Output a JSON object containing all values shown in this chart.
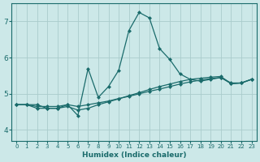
{
  "xlabel": "Humidex (Indice chaleur)",
  "background_color": "#cce8e8",
  "grid_color": "#aacccc",
  "line_color": "#1a6b6b",
  "xlim": [
    -0.5,
    23.5
  ],
  "ylim": [
    3.7,
    7.5
  ],
  "xticks": [
    0,
    1,
    2,
    3,
    4,
    5,
    6,
    7,
    8,
    9,
    10,
    11,
    12,
    13,
    14,
    15,
    16,
    17,
    18,
    19,
    20,
    21,
    22,
    23
  ],
  "yticks": [
    4,
    5,
    6,
    7
  ],
  "series_main_x": [
    0,
    1,
    2,
    3,
    4,
    5,
    6,
    7,
    8,
    9,
    10,
    11,
    12,
    13,
    14,
    15,
    16,
    17,
    18,
    19,
    20,
    21,
    22,
    23
  ],
  "series_main_y": [
    4.7,
    4.7,
    4.7,
    4.6,
    4.6,
    4.7,
    4.4,
    5.7,
    4.9,
    5.2,
    5.65,
    6.75,
    7.25,
    7.1,
    6.25,
    5.95,
    5.55,
    5.4,
    5.35,
    5.4,
    5.45,
    5.3,
    5.3,
    5.4
  ],
  "series_line1_x": [
    0,
    1,
    2,
    3,
    4,
    5,
    6,
    7,
    8,
    9,
    10,
    11,
    12,
    13,
    14,
    15,
    16,
    17,
    18,
    19,
    20,
    21,
    22,
    23
  ],
  "series_line1_y": [
    4.7,
    4.7,
    4.65,
    4.65,
    4.65,
    4.7,
    4.65,
    4.7,
    4.75,
    4.8,
    4.87,
    4.93,
    5.0,
    5.07,
    5.13,
    5.2,
    5.27,
    5.33,
    5.38,
    5.42,
    5.45,
    5.28,
    5.3,
    5.4
  ],
  "series_line2_x": [
    0,
    1,
    2,
    3,
    4,
    5,
    6,
    7,
    8,
    9,
    10,
    11,
    12,
    13,
    14,
    15,
    16,
    17,
    18,
    19,
    20,
    21,
    22,
    23
  ],
  "series_line2_y": [
    4.7,
    4.7,
    4.6,
    4.6,
    4.6,
    4.65,
    4.55,
    4.6,
    4.7,
    4.78,
    4.86,
    4.95,
    5.03,
    5.12,
    5.2,
    5.27,
    5.34,
    5.4,
    5.43,
    5.46,
    5.48,
    5.28,
    5.3,
    5.4
  ]
}
